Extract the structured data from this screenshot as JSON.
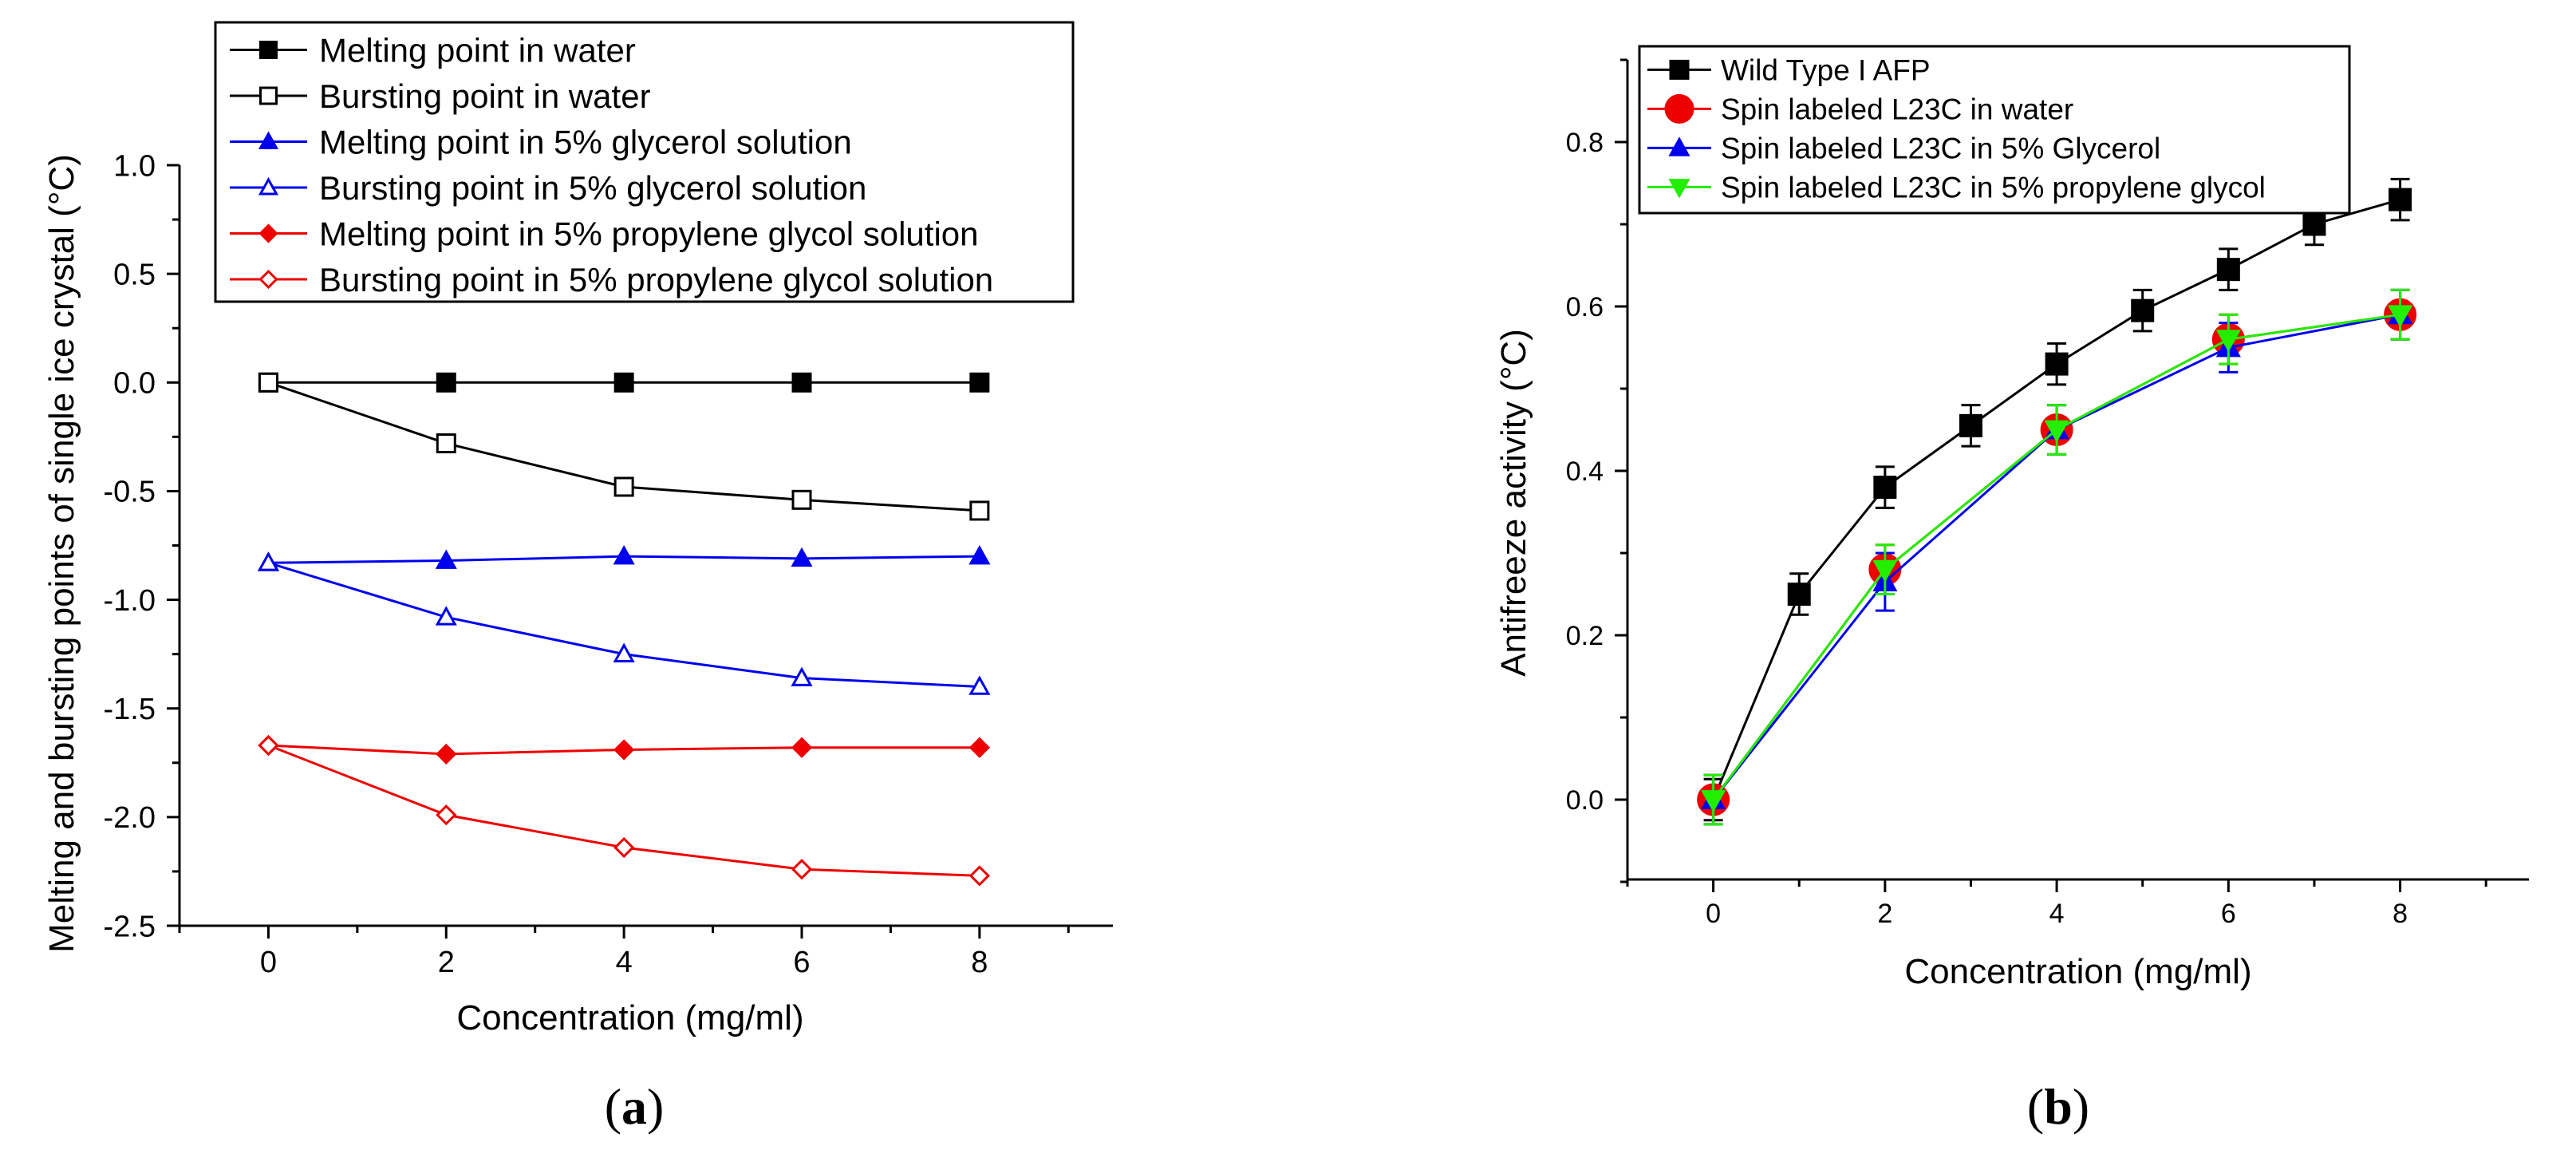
{
  "chart_data": [
    {
      "id": "a",
      "type": "line",
      "panel_label": "a",
      "xlabel": "Concentration (mg/ml)",
      "ylabel": "Melting and bursting points of single ice crystal (°C)",
      "xlim": [
        -1,
        9.5
      ],
      "ylim": [
        -2.5,
        1.0
      ],
      "xticks": [
        0,
        2,
        4,
        6,
        8
      ],
      "yticks": [
        -2.5,
        -2.0,
        -1.5,
        -1.0,
        -0.5,
        0.0,
        0.5,
        1.0
      ],
      "ytick_labels": [
        "-2.5",
        "-2.0",
        "-1.5",
        "-1.0",
        "-0.5",
        "0.0",
        "0.5",
        "1.0"
      ],
      "legend_position": "top-right",
      "series": [
        {
          "name": "Melting point in water",
          "color": "#000000",
          "marker": "square",
          "filled": true,
          "x": [
            0,
            2,
            4,
            6,
            8
          ],
          "y": [
            0.0,
            0.0,
            0.0,
            0.0,
            0.0
          ]
        },
        {
          "name": "Bursting point in water",
          "color": "#000000",
          "marker": "square",
          "filled": false,
          "x": [
            0,
            2,
            4,
            6,
            8
          ],
          "y": [
            0.0,
            -0.28,
            -0.48,
            -0.54,
            -0.59
          ]
        },
        {
          "name": "Melting point in 5% glycerol solution",
          "color": "#0000ee",
          "marker": "triangle-up",
          "filled": true,
          "x": [
            0,
            2,
            4,
            6,
            8
          ],
          "y": [
            -0.83,
            -0.82,
            -0.8,
            -0.81,
            -0.8
          ]
        },
        {
          "name": "Bursting point in 5% glycerol solution",
          "color": "#0000ee",
          "marker": "triangle-up",
          "filled": false,
          "x": [
            0,
            2,
            4,
            6,
            8
          ],
          "y": [
            -0.83,
            -1.08,
            -1.25,
            -1.36,
            -1.4
          ]
        },
        {
          "name": "Melting point in 5% propylene glycol solution",
          "color": "#ee0000",
          "marker": "diamond",
          "filled": true,
          "x": [
            0,
            2,
            4,
            6,
            8
          ],
          "y": [
            -1.67,
            -1.71,
            -1.69,
            -1.68,
            -1.68
          ]
        },
        {
          "name": "Bursting point in 5% propylene glycol solution",
          "color": "#ee0000",
          "marker": "diamond",
          "filled": false,
          "x": [
            0,
            2,
            4,
            6,
            8
          ],
          "y": [
            -1.67,
            -1.99,
            -2.14,
            -2.24,
            -2.27
          ]
        }
      ]
    },
    {
      "id": "b",
      "type": "line",
      "panel_label": "b",
      "xlabel": "Concentration (mg/ml)",
      "ylabel": "Antifreeze activity (°C)",
      "xlim": [
        -1,
        9.5
      ],
      "ylim": [
        -0.1,
        0.9
      ],
      "xticks": [
        0,
        2,
        4,
        6,
        8
      ],
      "yticks": [
        0.0,
        0.2,
        0.4,
        0.6,
        0.8
      ],
      "ytick_labels": [
        "0.0",
        "0.2",
        "0.4",
        "0.6",
        "0.8"
      ],
      "legend_position": "top-left",
      "series": [
        {
          "name": "Wild Type I AFP",
          "color": "#000000",
          "marker": "square",
          "filled": true,
          "x": [
            0,
            1,
            2,
            3,
            4,
            5,
            6,
            7,
            8
          ],
          "y": [
            0.0,
            0.25,
            0.38,
            0.455,
            0.53,
            0.595,
            0.645,
            0.7,
            0.73
          ],
          "err": [
            0.025,
            0.025,
            0.025,
            0.025,
            0.025,
            0.025,
            0.025,
            0.025,
            0.025
          ]
        },
        {
          "name": "Spin labeled L23C in water",
          "color": "#ee0000",
          "marker": "circle",
          "filled": true,
          "x": [
            0,
            2,
            4,
            6,
            8
          ],
          "y": [
            0.0,
            0.28,
            0.45,
            0.56,
            0.59
          ],
          "err": [
            0.03,
            0.03,
            0.03,
            0.03,
            0.03
          ]
        },
        {
          "name": "Spin labeled L23C in 5% Glycerol",
          "color": "#0000ee",
          "marker": "triangle-up",
          "filled": true,
          "x": [
            0,
            2,
            4,
            6,
            8
          ],
          "y": [
            0.0,
            0.265,
            0.45,
            0.55,
            0.59
          ],
          "err": [
            0.03,
            0.035,
            0.03,
            0.03,
            0.03
          ]
        },
        {
          "name": "Spin labeled L23C in 5% propylene glycol",
          "color": "#22ee00",
          "marker": "triangle-down",
          "filled": true,
          "x": [
            0,
            2,
            4,
            6,
            8
          ],
          "y": [
            0.0,
            0.28,
            0.45,
            0.56,
            0.59
          ],
          "err": [
            0.03,
            0.03,
            0.03,
            0.03,
            0.03
          ]
        }
      ]
    }
  ]
}
